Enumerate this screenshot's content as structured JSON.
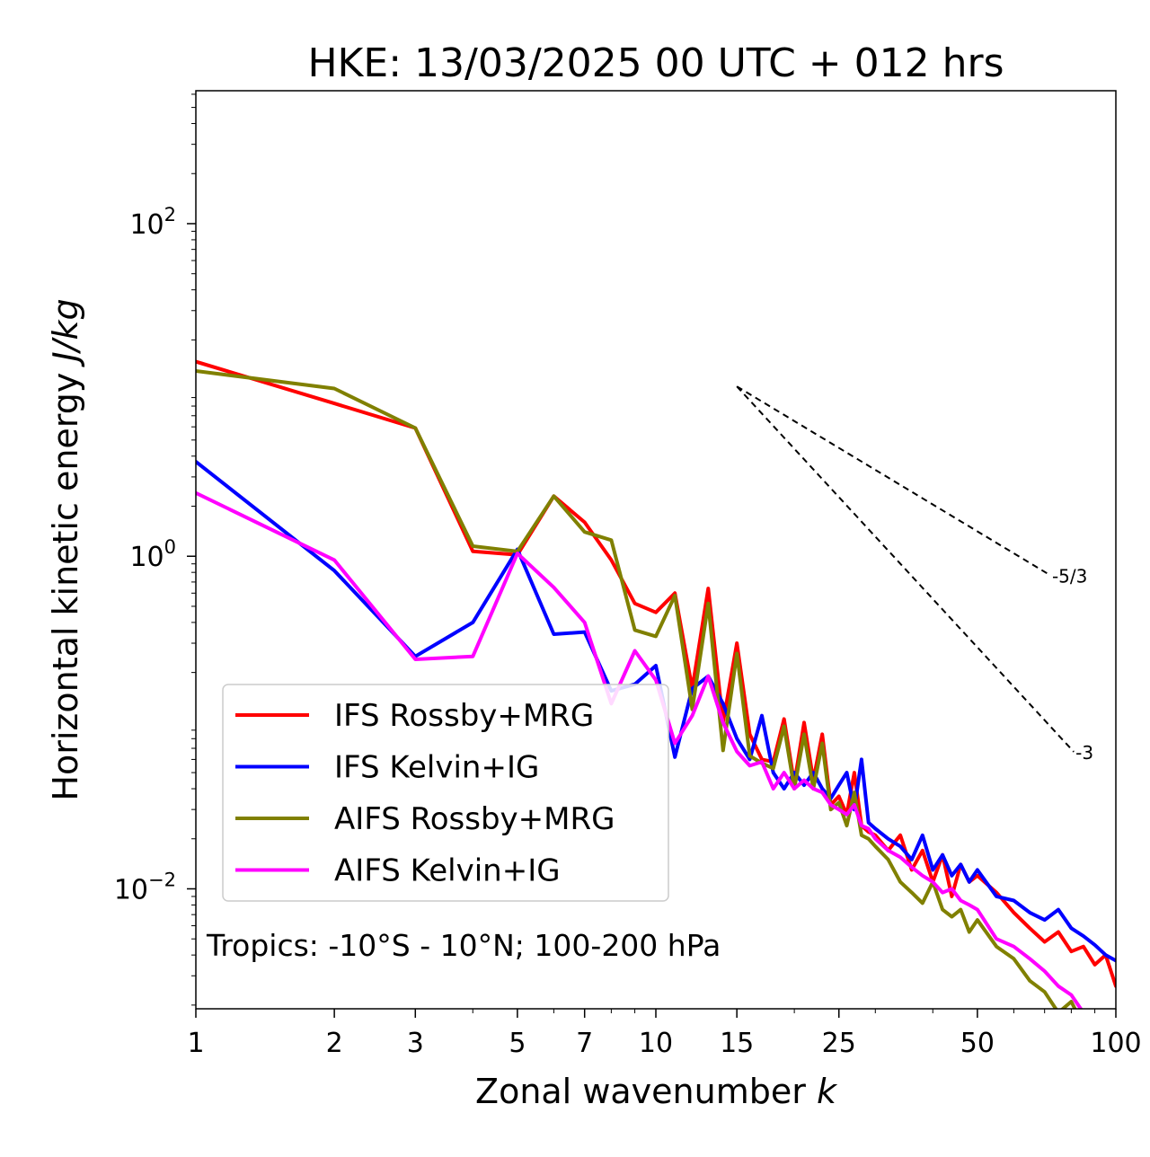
{
  "chart_data": {
    "type": "line",
    "title": "HKE: 13/03/2025 00 UTC + 012 hrs",
    "xlabel": "Zonal wavenumber",
    "xlabel_var": "k",
    "ylabel": "Horizontal kinetic energy",
    "ylabel_unit": "J/kg",
    "xscale": "log",
    "yscale": "log",
    "xlim": [
      1,
      100
    ],
    "ylim": [
      0.0019,
      630
    ],
    "x_ticks": [
      {
        "value": 1,
        "label": "1"
      },
      {
        "value": 2,
        "label": "2"
      },
      {
        "value": 3,
        "label": "3"
      },
      {
        "value": 5,
        "label": "5"
      },
      {
        "value": 7,
        "label": "7"
      },
      {
        "value": 10,
        "label": "10"
      },
      {
        "value": 15,
        "label": "15"
      },
      {
        "value": 25,
        "label": "25"
      },
      {
        "value": 50,
        "label": "50"
      },
      {
        "value": 100,
        "label": "100"
      }
    ],
    "y_ticks": [
      {
        "value": 0.01,
        "base": "10",
        "exp": "−2"
      },
      {
        "value": 1,
        "base": "10",
        "exp": "0"
      },
      {
        "value": 100,
        "base": "10",
        "exp": "2"
      }
    ],
    "annotation": "Tropics: -10°S - 10°N; 100-200 hPa",
    "legend_position": "lower-left",
    "reference_lines": [
      {
        "label": "-5/3",
        "k_start": 15,
        "E_start": 10.5,
        "k_end": 72,
        "slope": -1.6667
      },
      {
        "label": "-3",
        "k_start": 15,
        "E_start": 10.5,
        "k_end": 81,
        "slope": -3
      }
    ],
    "series": [
      {
        "name": "IFS Rossby+MRG",
        "color": "#ff0000",
        "x": [
          1,
          2,
          3,
          4,
          5,
          6,
          7,
          8,
          9,
          10,
          11,
          12,
          13,
          14,
          15,
          16,
          17,
          18,
          19,
          20,
          21,
          22,
          23,
          24,
          25,
          26,
          27,
          28,
          29,
          30,
          32,
          34,
          36,
          38,
          40,
          42,
          44,
          46,
          48,
          50,
          55,
          60,
          65,
          70,
          75,
          80,
          85,
          90,
          95,
          100
        ],
        "y": [
          14.8,
          8.3,
          5.9,
          1.07,
          1.02,
          2.3,
          1.6,
          0.95,
          0.52,
          0.46,
          0.6,
          0.16,
          0.64,
          0.1,
          0.3,
          0.085,
          0.06,
          0.058,
          0.105,
          0.043,
          0.1,
          0.045,
          0.085,
          0.032,
          0.036,
          0.028,
          0.05,
          0.024,
          0.022,
          0.021,
          0.017,
          0.021,
          0.013,
          0.017,
          0.011,
          0.016,
          0.009,
          0.014,
          0.011,
          0.012,
          0.0095,
          0.0072,
          0.0058,
          0.0048,
          0.0055,
          0.0042,
          0.0045,
          0.0035,
          0.004,
          0.0026
        ]
      },
      {
        "name": "IFS Kelvin+IG",
        "color": "#0000ff",
        "x": [
          1,
          2,
          3,
          4,
          5,
          6,
          7,
          8,
          9,
          10,
          11,
          12,
          13,
          14,
          15,
          16,
          17,
          18,
          19,
          20,
          21,
          22,
          23,
          24,
          25,
          26,
          27,
          28,
          29,
          30,
          32,
          34,
          36,
          38,
          40,
          42,
          44,
          46,
          48,
          50,
          55,
          60,
          65,
          70,
          75,
          80,
          85,
          90,
          95,
          100
        ],
        "y": [
          3.7,
          0.82,
          0.25,
          0.4,
          1.1,
          0.34,
          0.35,
          0.155,
          0.17,
          0.22,
          0.062,
          0.16,
          0.19,
          0.13,
          0.08,
          0.06,
          0.11,
          0.05,
          0.04,
          0.05,
          0.042,
          0.05,
          0.04,
          0.035,
          0.042,
          0.05,
          0.03,
          0.06,
          0.025,
          0.023,
          0.02,
          0.018,
          0.015,
          0.021,
          0.013,
          0.016,
          0.012,
          0.014,
          0.011,
          0.013,
          0.009,
          0.0085,
          0.0072,
          0.0065,
          0.0075,
          0.0058,
          0.0052,
          0.0046,
          0.004,
          0.0037
        ]
      },
      {
        "name": "AIFS Rossby+MRG",
        "color": "#808000",
        "x": [
          1,
          2,
          3,
          4,
          5,
          6,
          7,
          8,
          9,
          10,
          11,
          12,
          13,
          14,
          15,
          16,
          17,
          18,
          19,
          20,
          21,
          22,
          23,
          24,
          25,
          26,
          27,
          28,
          29,
          30,
          32,
          34,
          36,
          38,
          40,
          42,
          44,
          46,
          48,
          50,
          55,
          60,
          65,
          70,
          75,
          80,
          85,
          90,
          95,
          100
        ],
        "y": [
          13.0,
          10.2,
          5.9,
          1.15,
          1.07,
          2.3,
          1.4,
          1.25,
          0.36,
          0.33,
          0.58,
          0.12,
          0.52,
          0.068,
          0.26,
          0.063,
          0.057,
          0.053,
          0.095,
          0.04,
          0.085,
          0.04,
          0.075,
          0.03,
          0.033,
          0.024,
          0.038,
          0.021,
          0.02,
          0.018,
          0.015,
          0.011,
          0.0095,
          0.0082,
          0.011,
          0.0075,
          0.0068,
          0.0075,
          0.0055,
          0.0065,
          0.0045,
          0.0038,
          0.0028,
          0.0024,
          0.0018,
          0.0021,
          0.0015,
          0.0014,
          0.0013,
          0.0011
        ]
      },
      {
        "name": "AIFS Kelvin+IG",
        "color": "#ff00ff",
        "x": [
          1,
          2,
          3,
          4,
          5,
          6,
          7,
          8,
          9,
          10,
          11,
          12,
          13,
          14,
          15,
          16,
          17,
          18,
          19,
          20,
          21,
          22,
          23,
          24,
          25,
          26,
          27,
          28,
          29,
          30,
          32,
          34,
          36,
          38,
          40,
          42,
          44,
          46,
          48,
          50,
          55,
          60,
          65,
          70,
          75,
          80,
          85,
          90,
          95,
          100
        ],
        "y": [
          2.4,
          0.95,
          0.24,
          0.25,
          1.04,
          0.65,
          0.4,
          0.13,
          0.27,
          0.18,
          0.075,
          0.11,
          0.19,
          0.1,
          0.067,
          0.055,
          0.058,
          0.04,
          0.05,
          0.04,
          0.045,
          0.04,
          0.038,
          0.032,
          0.03,
          0.028,
          0.032,
          0.024,
          0.023,
          0.02,
          0.017,
          0.0155,
          0.0135,
          0.012,
          0.011,
          0.0095,
          0.01,
          0.0085,
          0.008,
          0.0075,
          0.005,
          0.0045,
          0.0038,
          0.0032,
          0.0026,
          0.0023,
          0.0018,
          0.0016,
          0.0013,
          0.0012
        ]
      }
    ]
  }
}
